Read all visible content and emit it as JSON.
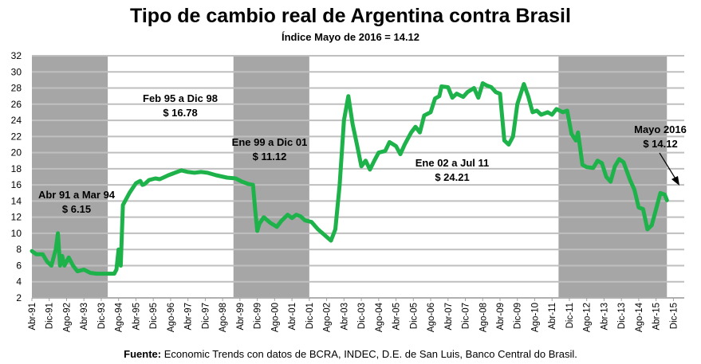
{
  "title": "Tipo de cambio real de Argentina contra Brasil",
  "subtitle": "Índice Mayo de 2016 = 14.12",
  "source_label": "Fuente:",
  "source_text": "Economic Trends con datos de BCRA, INDEC, D.E. de San Luis, Banco Central do Brasil.",
  "colors": {
    "line": "#1db34a",
    "shade": "#a6a6a6",
    "grid": "#bfbfbf"
  },
  "chart_data": {
    "type": "line",
    "title": "Tipo de cambio real de Argentina contra Brasil",
    "xlabel": "",
    "ylabel": "",
    "ylim": [
      2,
      32
    ],
    "yticks": [
      2,
      4,
      6,
      8,
      10,
      12,
      14,
      16,
      18,
      20,
      22,
      24,
      26,
      28,
      30,
      32
    ],
    "x_start": "Abr-91",
    "x_unit": "months since Abr-91",
    "xlim": [
      0,
      301
    ],
    "xtick_labels": [
      "Abr-91",
      "Dic-91",
      "Ago-92",
      "Abr-93",
      "Dic-93",
      "Ago-94",
      "Abr-95",
      "Dic-95",
      "Ago-96",
      "Abr-97",
      "Dic-97",
      "Ago-98",
      "Abr-99",
      "Dic-99",
      "Ago-00",
      "Abr-01",
      "Dic-01",
      "Ago-02",
      "Abr-03",
      "Dic-03",
      "Ago-04",
      "Abr-05",
      "Dic-05",
      "Ago-06",
      "Abr-07",
      "Dic-07",
      "Ago-08",
      "Abr-09",
      "Dic-09",
      "Ago-10",
      "Abr-11",
      "Dic-11",
      "Ago-12",
      "Abr-13",
      "Dic-13",
      "Ago-14",
      "Abr-15",
      "Dic-15"
    ],
    "xtick_step_months": 8,
    "grid": true,
    "shaded_periods": [
      [
        0,
        35
      ],
      [
        93,
        128
      ],
      [
        243,
        293
      ]
    ],
    "series": [
      {
        "name": "Tipo de cambio real",
        "x": [
          0,
          2,
          5,
          7,
          9,
          11,
          12,
          13,
          14,
          15,
          17,
          19,
          21,
          24,
          27,
          30,
          34,
          38,
          39,
          40,
          41,
          42,
          45,
          48,
          50,
          51,
          52,
          54,
          57,
          59,
          63,
          66,
          69,
          72,
          75,
          78,
          81,
          85,
          90,
          94,
          97,
          100,
          102,
          103,
          104,
          105,
          107,
          110,
          113,
          115,
          118,
          120,
          122,
          124,
          126,
          129,
          132,
          135,
          138,
          140,
          142,
          144,
          146,
          148,
          150,
          152,
          154,
          156,
          158,
          160,
          163,
          165,
          168,
          170,
          172,
          175,
          177,
          179,
          181,
          184,
          186,
          188,
          189,
          192,
          194,
          196,
          199,
          201,
          204,
          206,
          208,
          210,
          212,
          214,
          216,
          218,
          220,
          222,
          224,
          227,
          229,
          231,
          233,
          235,
          238,
          240,
          242,
          245,
          247,
          249,
          251,
          252,
          254,
          256,
          259,
          261,
          263,
          265,
          267,
          269,
          271,
          273,
          276,
          278,
          280,
          282,
          284,
          286,
          288,
          290,
          292,
          293
        ],
        "values": [
          7.8,
          7.4,
          7.4,
          6.5,
          6.0,
          8,
          10.0,
          6.0,
          7.2,
          6.0,
          7.0,
          6.0,
          5.3,
          5.5,
          5.1,
          5.0,
          5.0,
          5.0,
          5.5,
          8.0,
          6.0,
          13.5,
          15,
          16.2,
          16.5,
          16,
          16.1,
          16.6,
          16.8,
          16.7,
          17.2,
          17.5,
          17.8,
          17.6,
          17.5,
          17.6,
          17.5,
          17.2,
          16.9,
          16.8,
          16.4,
          16.1,
          16.0,
          13,
          10.3,
          11.2,
          12.0,
          11.3,
          10.8,
          11.5,
          12.3,
          11.9,
          12.3,
          12.1,
          11.6,
          11.4,
          10.5,
          9.8,
          9.1,
          10.5,
          16,
          24,
          27.0,
          23.5,
          21,
          18.3,
          19,
          17.9,
          19,
          20,
          20.2,
          21.3,
          20.8,
          19.8,
          21,
          22.5,
          23.2,
          22.5,
          24.6,
          25,
          26.7,
          27,
          28.2,
          28.1,
          26.8,
          27.3,
          26.9,
          27.5,
          28,
          26.8,
          28.6,
          28.3,
          28.1,
          27.5,
          27.3,
          21.5,
          21,
          22,
          26,
          28.5,
          27,
          25,
          25.2,
          24.7,
          25,
          24.7,
          25.4,
          25.0,
          25.2,
          22.3,
          21.5,
          22.5,
          18.5,
          18.2,
          18.1,
          19.0,
          18.7,
          17,
          16.4,
          18.3,
          19.2,
          18.8,
          16.6,
          15.4,
          13.2,
          13.0,
          10.5,
          11.0,
          13.0,
          15.0,
          14.8,
          14.1
        ]
      }
    ],
    "annotations": [
      {
        "line1": "Abr 91 a Mar 94",
        "line2": "$ 6.15"
      },
      {
        "line1": "Feb 95 a Dic 98",
        "line2": "$ 16.78"
      },
      {
        "line1": "Ene 99 a Dic 01",
        "line2": "$ 11.12"
      },
      {
        "line1": "Ene 02 a Jul 11",
        "line2": "$ 24.21"
      },
      {
        "line1": "Mayo 2016",
        "line2": "$ 14.12"
      }
    ]
  }
}
